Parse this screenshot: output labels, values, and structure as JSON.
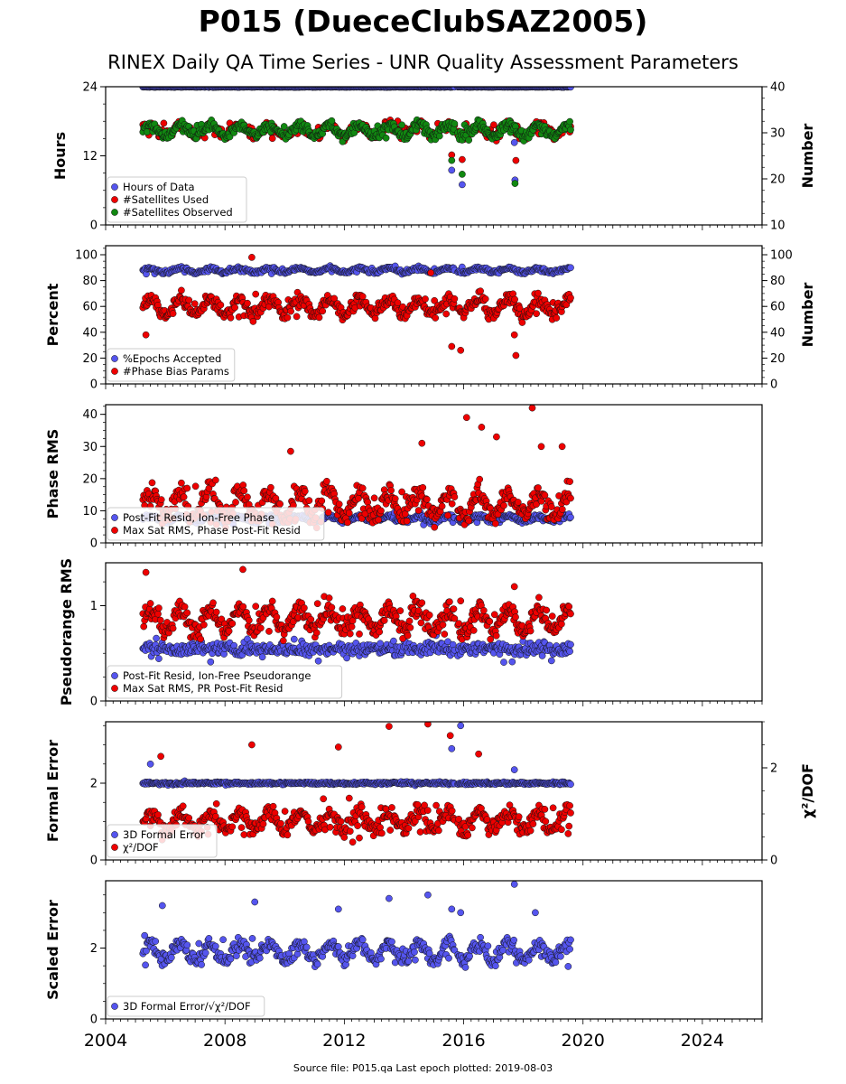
{
  "title": "P015 (DueceClubSAZ2005)",
  "subtitle": "RINEX Daily QA Time Series - UNR Quality Assessment Parameters",
  "footer": "Source file: P015.qa Last epoch plotted: 2019-08-03",
  "colors": {
    "blue": "#5555ee",
    "red": "#ee0000",
    "green": "#118811"
  },
  "chart_data": {
    "type": "scatter",
    "x_axis": {
      "range": [
        2004,
        2026
      ],
      "ticks": [
        "2004",
        "2008",
        "2012",
        "2016",
        "2020",
        "2024"
      ],
      "tick_values": [
        2004,
        2008,
        2012,
        2016,
        2020,
        2024
      ]
    },
    "data_start": 2005.25,
    "data_end": 2019.59,
    "gap": [
      2015.72,
      2015.8
    ],
    "panels": [
      {
        "ylabel": "Hours",
        "ylim": [
          0,
          24
        ],
        "yticks": [
          0,
          12,
          24
        ],
        "right_label": "Number",
        "right_ylim": [
          10,
          40
        ],
        "right_ticks": [
          10,
          20,
          30,
          40
        ],
        "legend": [
          "Hours of Data",
          "#Satellites Used",
          "#Satellites Observed"
        ],
        "series": [
          {
            "name": "Hours of Data",
            "color": "blue",
            "axis": "left",
            "typical": 23.95,
            "spread": 0.05,
            "outliers": [
              [
                2005.5,
                17
              ],
              [
                2015.6,
                9.5
              ],
              [
                2015.95,
                7
              ],
              [
                2017.7,
                14.3
              ],
              [
                2017.72,
                7.8
              ]
            ]
          },
          {
            "name": "#Satellites Used",
            "color": "red",
            "axis": "right",
            "typical": 30.5,
            "spread": 1.5,
            "outliers": [
              [
                2005.45,
                29.5
              ],
              [
                2008.9,
                31
              ],
              [
                2015.6,
                25.2
              ],
              [
                2015.95,
                24.2
              ],
              [
                2017.75,
                24
              ],
              [
                2018.6,
                31.8
              ]
            ]
          },
          {
            "name": "#Satellites Observed",
            "color": "green",
            "axis": "right",
            "typical": 30.5,
            "spread": 1.5,
            "outliers": [
              [
                2015.6,
                24
              ],
              [
                2015.95,
                21
              ],
              [
                2017.72,
                19
              ]
            ]
          }
        ]
      },
      {
        "ylabel": "Percent",
        "ylim": [
          0,
          107
        ],
        "yticks": [
          0,
          20,
          40,
          60,
          80,
          100
        ],
        "right_label": "Number",
        "right_ylim": [
          0,
          107
        ],
        "right_ticks": [
          0,
          20,
          40,
          60,
          80,
          100
        ],
        "legend": [
          "%Epochs Accepted",
          "#Phase Bias Params"
        ],
        "series": [
          {
            "name": "%Epochs Accepted",
            "color": "blue",
            "axis": "left",
            "typical": 88,
            "spread": 2,
            "outliers": []
          },
          {
            "name": "#Phase Bias Params",
            "color": "red",
            "axis": "right",
            "typical": 60,
            "spread": 8,
            "outliers": [
              [
                2005.35,
                38
              ],
              [
                2008.9,
                98
              ],
              [
                2015.6,
                29
              ],
              [
                2015.9,
                26
              ],
              [
                2017.7,
                38
              ],
              [
                2017.75,
                22
              ],
              [
                2014.9,
                86
              ]
            ]
          }
        ]
      },
      {
        "ylabel": "Phase RMS",
        "ylim": [
          0,
          43
        ],
        "yticks": [
          0,
          10,
          20,
          30,
          40
        ],
        "legend": [
          "Post-Fit Resid, Ion-Free Phase",
          "Max Sat RMS, Phase Post-Fit Resid"
        ],
        "series": [
          {
            "name": "Post-Fit Resid, Ion-Free Phase",
            "color": "blue",
            "axis": "left",
            "typical": 7.5,
            "spread": 1,
            "outliers": []
          },
          {
            "name": "Max Sat RMS, Phase Post-Fit Resid",
            "color": "red",
            "axis": "left",
            "typical": 12,
            "spread": 5,
            "outliers": [
              [
                2010.2,
                28.5
              ],
              [
                2014.6,
                31
              ],
              [
                2016.1,
                39
              ],
              [
                2016.6,
                36
              ],
              [
                2017.1,
                33
              ],
              [
                2018.3,
                42
              ],
              [
                2018.6,
                30
              ],
              [
                2019.3,
                30
              ]
            ]
          }
        ]
      },
      {
        "ylabel": "Pseudorange RMS",
        "ylim": [
          0,
          1.45
        ],
        "yticks": [
          0,
          1
        ],
        "legend": [
          "Post-Fit Resid, Ion-Free Pseudorange",
          "Max Sat RMS, PR Post-Fit Resid"
        ],
        "series": [
          {
            "name": "Post-Fit Resid, Ion-Free Pseudorange",
            "color": "blue",
            "axis": "left",
            "typical": 0.55,
            "spread": 0.1,
            "outliers": []
          },
          {
            "name": "Max Sat RMS, PR Post-Fit Resid",
            "color": "red",
            "axis": "left",
            "typical": 0.85,
            "spread": 0.15,
            "outliers": [
              [
                2005.35,
                1.35
              ],
              [
                2008.6,
                1.38
              ],
              [
                2014.3,
                1.1
              ],
              [
                2015.9,
                1.05
              ],
              [
                2017.7,
                1.2
              ]
            ]
          }
        ]
      },
      {
        "ylabel": "Formal Error",
        "ylim": [
          0,
          3.6
        ],
        "yticks": [
          0,
          2
        ],
        "right_label": "χ²/DOF",
        "right_ylim": [
          0,
          3
        ],
        "right_ticks": [
          0,
          2
        ],
        "legend": [
          "3D Formal Error",
          "χ²/DOF"
        ],
        "series": [
          {
            "name": "3D Formal Error",
            "color": "blue",
            "axis": "left",
            "typical": 2.0,
            "spread": 0.05,
            "outliers": [
              [
                2005.5,
                2.5
              ],
              [
                2015.6,
                2.9
              ],
              [
                2015.9,
                3.5
              ],
              [
                2017.7,
                2.35
              ]
            ]
          },
          {
            "name": "χ²/DOF",
            "color": "red",
            "axis": "right",
            "typical": 0.85,
            "spread": 0.25,
            "outliers": [
              [
                2005.85,
                2.25
              ],
              [
                2008.9,
                2.5
              ],
              [
                2011.8,
                2.45
              ],
              [
                2013.5,
                2.9
              ],
              [
                2014.8,
                2.95
              ],
              [
                2015.55,
                2.7
              ],
              [
                2016.5,
                2.3
              ]
            ]
          }
        ]
      },
      {
        "ylabel": "Scaled Error",
        "ylim": [
          0,
          3.9
        ],
        "yticks": [
          0,
          2
        ],
        "legend": [
          "3D Formal Error/√χ²/DOF"
        ],
        "series": [
          {
            "name": "3D Formal Error/√χ²/DOF",
            "color": "blue",
            "axis": "left",
            "typical": 1.9,
            "spread": 0.3,
            "outliers": [
              [
                2005.9,
                3.2
              ],
              [
                2009,
                3.3
              ],
              [
                2011.8,
                3.1
              ],
              [
                2013.5,
                3.4
              ],
              [
                2014.8,
                3.5
              ],
              [
                2015.6,
                3.1
              ],
              [
                2015.9,
                3.0
              ],
              [
                2017.7,
                3.8
              ],
              [
                2018.4,
                3.0
              ]
            ]
          }
        ]
      }
    ]
  }
}
